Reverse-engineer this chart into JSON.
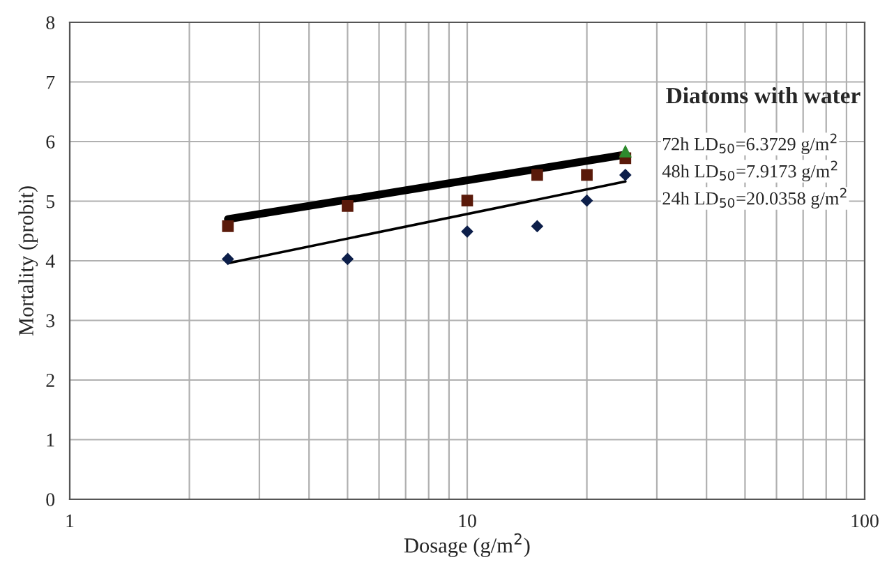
{
  "chart_data": {
    "type": "scatter",
    "title": "Diatoms with water",
    "xlabel": "Dosage (g/m$^{2}$)",
    "ylabel": "Mortality (probit)",
    "log": "x",
    "xlim": [
      1,
      100
    ],
    "xticks": [
      1,
      10,
      100
    ],
    "ylim": [
      0,
      8
    ],
    "yticks": [
      0,
      1,
      2,
      3,
      4,
      5,
      6,
      7,
      8
    ],
    "grid": true,
    "series": [
      {
        "marker": "diamond",
        "color": "#0d1f4a",
        "x": [
          2.5,
          5,
          10,
          15,
          20,
          25
        ],
        "values": [
          4.03,
          4.03,
          4.49,
          4.58,
          5.01,
          5.44
        ]
      },
      {
        "marker": "square",
        "color": "#5a1a0a",
        "x": [
          2.5,
          5,
          10,
          15,
          20,
          25
        ],
        "values": [
          4.58,
          4.92,
          5.01,
          5.44,
          5.44,
          5.72
        ]
      },
      {
        "marker": "triangle",
        "color": "#2e8b2e",
        "x": [
          25
        ],
        "values": [
          5.83
        ]
      },
      {
        "type": "line",
        "marker": "none",
        "color": "#000000",
        "x": [
          2.5,
          25
        ],
        "values": [
          4.7,
          5.78
        ]
      },
      {
        "type": "line",
        "marker": "none",
        "color": "#000000",
        "x": [
          2.5,
          25
        ],
        "values": [
          3.96,
          5.33
        ]
      }
    ],
    "annotations": [
      "72h LD$_{50}$=6.3729 g/m$^{2}$",
      "48h LD$_{50}$=7.9173 g/m$^{2}$",
      "24h LD$_{50}$=20.0358 g/m$^{2}$"
    ]
  }
}
